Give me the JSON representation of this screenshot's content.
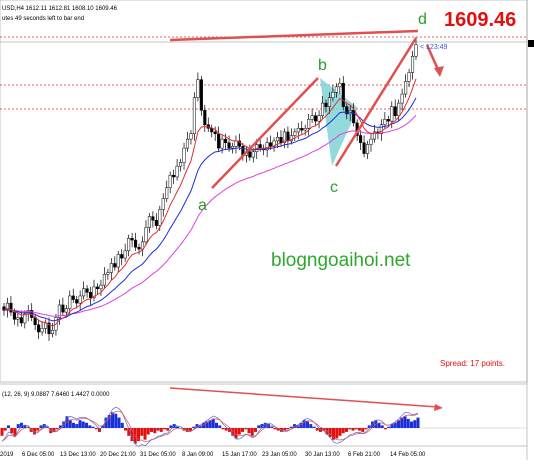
{
  "header": {
    "symbol_line": "USD,H4  1612.11 1612.81 1608.10 1609.46",
    "timer_line": "utes 49 seconds left to bar end"
  },
  "price_label": "1609.46",
  "countdown_label": "< 123:49",
  "watermark": "blogngoaihoi.net",
  "spread_label": "Spread: 17 points.",
  "indicator_header": "(12, 26, 9) 9.0887 7.6460 1.4427 0.0000",
  "colors": {
    "background": "#ffffff",
    "candle": "#000000",
    "ma_fast": "#e03030",
    "ma_mid": "#1a2fd8",
    "ma_slow": "#e040e0",
    "pattern_arrow": "#e05050",
    "pattern_fill": "#7fd3d6",
    "wave_label": "#2a9d2a",
    "price_tag": "#e01010",
    "macd_pos": "#1a2fd8",
    "macd_neg": "#e01010"
  },
  "chart_data": {
    "type": "candlestick",
    "symbol": "USD",
    "timeframe": "H4",
    "last_bar": {
      "open": 1612.11,
      "high": 1612.81,
      "low": 1608.1,
      "close": 1609.46
    },
    "x_tick_labels": [
      "2019",
      "6 Dec 05:00",
      "13 Dec 13:00",
      "20 Dec 21:00",
      "31 Dec 05:00",
      "8 Jan 09:00",
      "15 Jan 17:00",
      "23 Jan 05:00",
      "30 Jan 13:00",
      "6 Feb 21:00",
      "14 Feb 05:00"
    ],
    "wave_points": [
      "a",
      "b",
      "c",
      "d"
    ],
    "horizontal_levels": 3,
    "moving_averages": [
      "ma-fast",
      "ma-mid",
      "ma-slow"
    ],
    "closes": [
      1462,
      1466,
      1461,
      1457,
      1458,
      1455,
      1460,
      1462,
      1458,
      1454,
      1450,
      1452,
      1455,
      1449,
      1451,
      1458,
      1465,
      1461,
      1463,
      1470,
      1468,
      1466,
      1470,
      1474,
      1472,
      1469,
      1475,
      1474,
      1476,
      1482,
      1483,
      1488,
      1486,
      1493,
      1491,
      1495,
      1502,
      1501,
      1497,
      1496,
      1500,
      1508,
      1514,
      1512,
      1509,
      1518,
      1524,
      1530,
      1537,
      1536,
      1542,
      1544,
      1552,
      1557,
      1560,
      1580,
      1590,
      1573,
      1565,
      1563,
      1561,
      1560,
      1552,
      1557,
      1555,
      1552,
      1553,
      1556,
      1553,
      1548,
      1550,
      1547,
      1550,
      1554,
      1552,
      1551,
      1555,
      1553,
      1556,
      1558,
      1555,
      1561,
      1556,
      1559,
      1561,
      1563,
      1562,
      1563,
      1568,
      1570,
      1567,
      1570,
      1577,
      1575,
      1580,
      1583,
      1586,
      1588,
      1575,
      1571,
      1573,
      1566,
      1559,
      1555,
      1549,
      1554,
      1557,
      1561,
      1560,
      1565,
      1568,
      1567,
      1575,
      1570,
      1577,
      1582,
      1589,
      1594,
      1603,
      1609.46
    ],
    "macd_values": [
      -6,
      -2,
      2,
      -4,
      -6,
      3,
      4,
      2,
      1,
      -3,
      -5,
      -2,
      2,
      3,
      1,
      -4,
      -3,
      -1,
      2,
      5,
      9,
      6,
      4,
      3,
      6,
      5,
      4,
      2,
      1,
      -1,
      -3,
      2,
      8,
      10,
      12,
      11,
      8,
      4,
      -2,
      -6,
      -10,
      -12,
      -10,
      -6,
      -9,
      -5,
      -3,
      -4,
      -2,
      -3,
      -1,
      -2,
      2,
      3,
      1,
      0,
      -2,
      -3,
      -2,
      1,
      3,
      2,
      4,
      5,
      6,
      7,
      4,
      2,
      -1,
      -2,
      -3,
      -6,
      -8,
      -5,
      -3,
      -1,
      -4,
      -6,
      -3,
      2,
      3,
      4,
      3,
      1,
      -1,
      -2,
      -3,
      -2,
      -1,
      1,
      3,
      2,
      4,
      6,
      5,
      3,
      1,
      -2,
      -3,
      -2,
      -5,
      -7,
      -9,
      -8,
      -6,
      -4,
      -3,
      -1,
      -2,
      -1,
      -2,
      -3,
      -1,
      2,
      5,
      6,
      4,
      2,
      -1,
      1,
      3,
      4,
      6,
      8,
      9,
      7,
      5,
      6,
      8
    ]
  }
}
